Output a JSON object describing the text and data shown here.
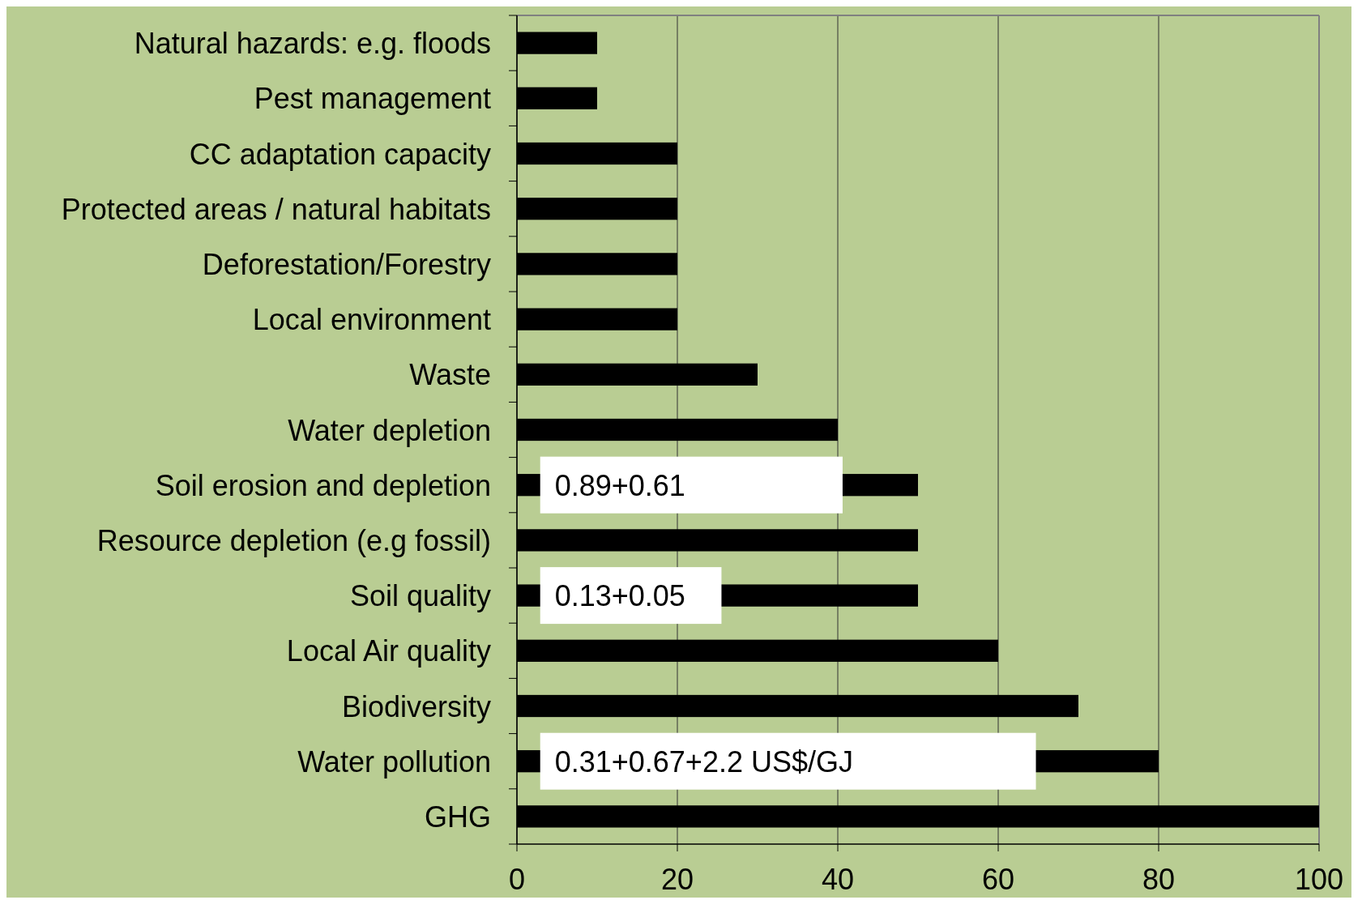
{
  "chart_data": {
    "type": "bar",
    "orientation": "horizontal",
    "categories": [
      "Natural hazards: e.g. floods",
      "Pest management",
      "CC adaptation capacity",
      "Protected areas / natural habitats",
      "Deforestation/Forestry",
      "Local environment",
      "Waste",
      "Water depletion",
      "Soil erosion and depletion",
      "Resource depletion (e.g fossil)",
      "Soil quality",
      "Local Air quality",
      "Biodiversity",
      "Water pollution",
      "GHG"
    ],
    "values": [
      10,
      10,
      20,
      20,
      20,
      20,
      30,
      40,
      50,
      50,
      50,
      60,
      70,
      80,
      100
    ],
    "color": "#000000",
    "xlim": [
      0,
      100
    ],
    "xticks": [
      0,
      20,
      40,
      60,
      80,
      100
    ],
    "grid": "x",
    "annotations": [
      "0.89+0.61",
      "0.13+0.05",
      "0.31+0.67+2.2 US$/GJ"
    ]
  }
}
